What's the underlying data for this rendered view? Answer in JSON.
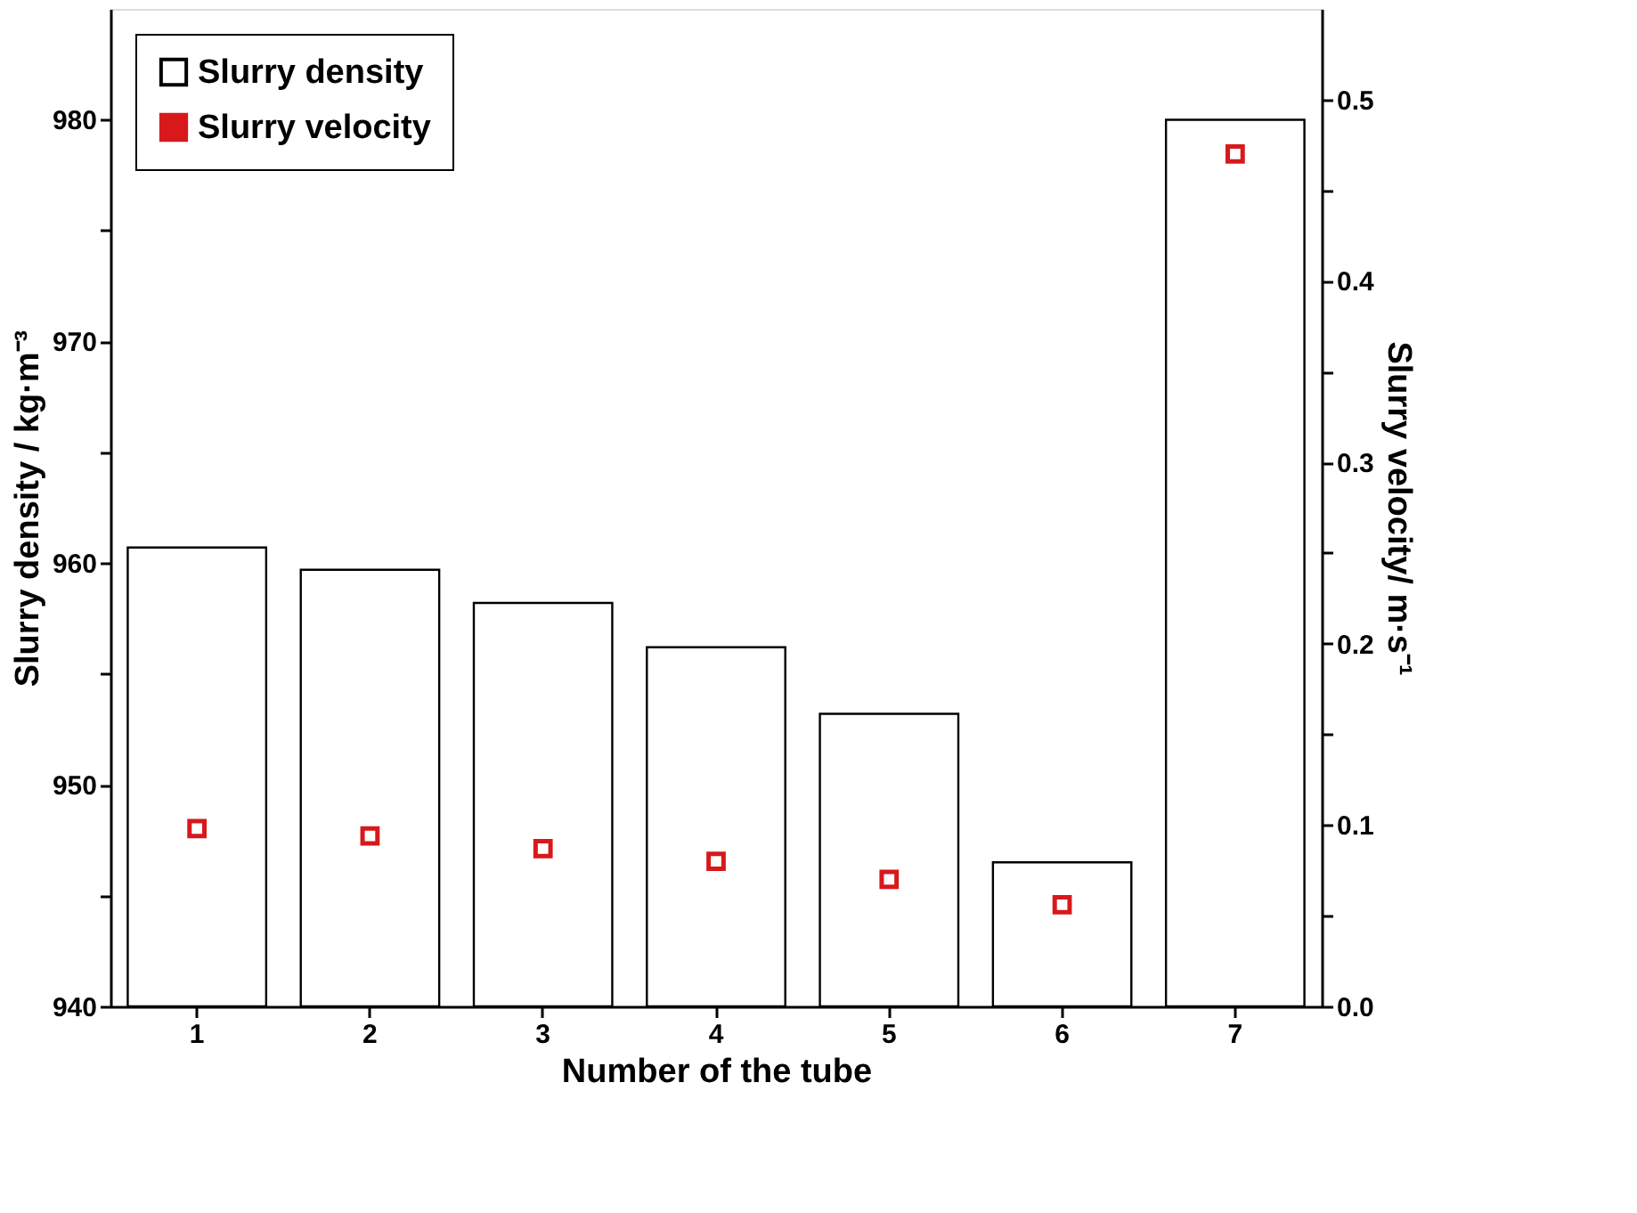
{
  "chart_data": {
    "type": "bar",
    "xlabel": "Number of the tube",
    "ylabel": "Slurry density / kg·m⁻³",
    "y2label": "Slurry velocity/ m·s⁻¹",
    "categories": [
      "1",
      "2",
      "3",
      "4",
      "5",
      "6",
      "7"
    ],
    "series": [
      {
        "name": "Slurry density",
        "color": "#ffffff",
        "values": [
          960.7,
          959.7,
          958.2,
          956.2,
          953.2,
          946.5,
          980.0
        ]
      },
      {
        "name": "Slurry velocity",
        "type": "scatter",
        "axis": "y2",
        "color": "#d7191c",
        "marker": "square",
        "values": [
          0.098,
          0.094,
          0.087,
          0.08,
          0.07,
          0.056,
          0.47
        ]
      }
    ],
    "ylim": [
      940,
      985
    ],
    "yticks": [
      940,
      {
        "value": 945,
        "label": null
      },
      950,
      {
        "value": 955,
        "label": null
      },
      960,
      {
        "value": 965,
        "label": null
      },
      970,
      {
        "value": 975,
        "label": null
      },
      980
    ],
    "y2lim": [
      0,
      0.55
    ],
    "y2ticks": [
      {
        "value": 0,
        "label": "0.0"
      },
      {
        "value": 0.05,
        "label": null
      },
      0.1,
      {
        "value": 0.15,
        "label": null
      },
      0.2,
      {
        "value": 0.25,
        "label": null
      },
      0.3,
      {
        "value": 0.35,
        "label": null
      },
      0.4,
      {
        "value": 0.45,
        "label": null
      },
      0.5
    ],
    "grid": false,
    "legend": "top left"
  }
}
